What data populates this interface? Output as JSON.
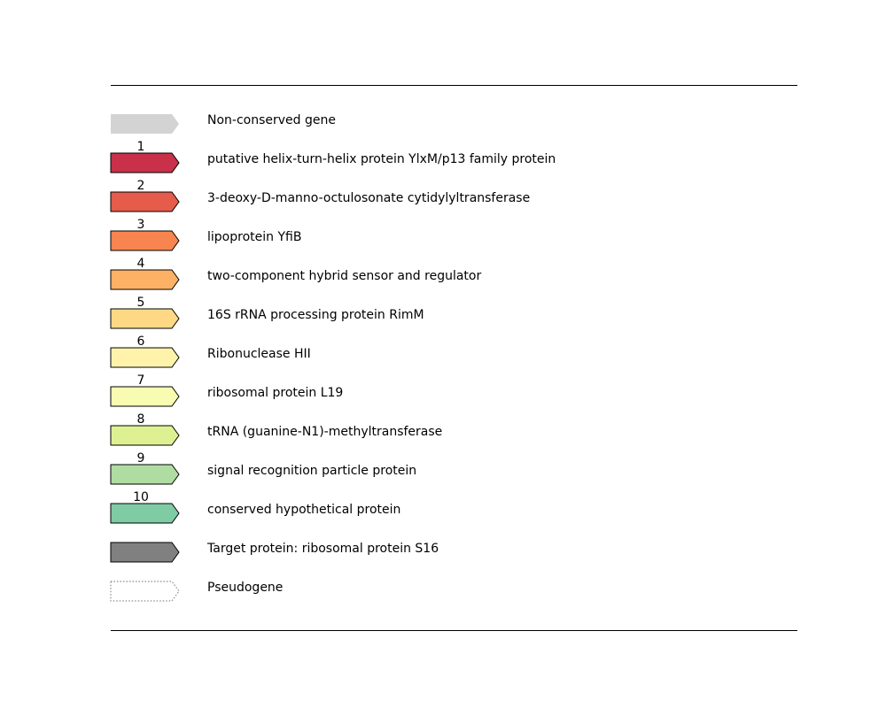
{
  "legend": {
    "items": [
      {
        "number": "",
        "label": "Non-conserved gene",
        "fill": "#d3d3d3",
        "style": "noborder"
      },
      {
        "number": "1",
        "label": "putative helix-turn-helix protein YlxM/p13 family protein",
        "fill": "#c9304a",
        "style": "solid"
      },
      {
        "number": "2",
        "label": "3-deoxy-D-manno-octulosonate cytidylyltransferase",
        "fill": "#e55c4b",
        "style": "solid"
      },
      {
        "number": "3",
        "label": "lipoprotein YfiB",
        "fill": "#f8844f",
        "style": "solid"
      },
      {
        "number": "4",
        "label": "two-component hybrid sensor and regulator",
        "fill": "#fdb164",
        "style": "solid"
      },
      {
        "number": "5",
        "label": "16S rRNA processing protein RimM",
        "fill": "#fed884",
        "style": "solid"
      },
      {
        "number": "6",
        "label": "Ribonuclease HII",
        "fill": "#fff3ac",
        "style": "solid"
      },
      {
        "number": "7",
        "label": "ribosomal protein L19",
        "fill": "#f7fcb1",
        "style": "solid"
      },
      {
        "number": "8",
        "label": "tRNA (guanine-N1)-methyltransferase",
        "fill": "#ddf192",
        "style": "solid"
      },
      {
        "number": "9",
        "label": "signal recognition particle protein",
        "fill": "#afdda1",
        "style": "solid"
      },
      {
        "number": "10",
        "label": "conserved hypothetical protein",
        "fill": "#7ecba4",
        "style": "solid"
      },
      {
        "number": "",
        "label": "Target protein: ribosomal protein S16",
        "fill": "#808080",
        "style": "solid"
      },
      {
        "number": "",
        "label": "Pseudogene",
        "fill": "#ffffff",
        "style": "dotted"
      }
    ]
  }
}
